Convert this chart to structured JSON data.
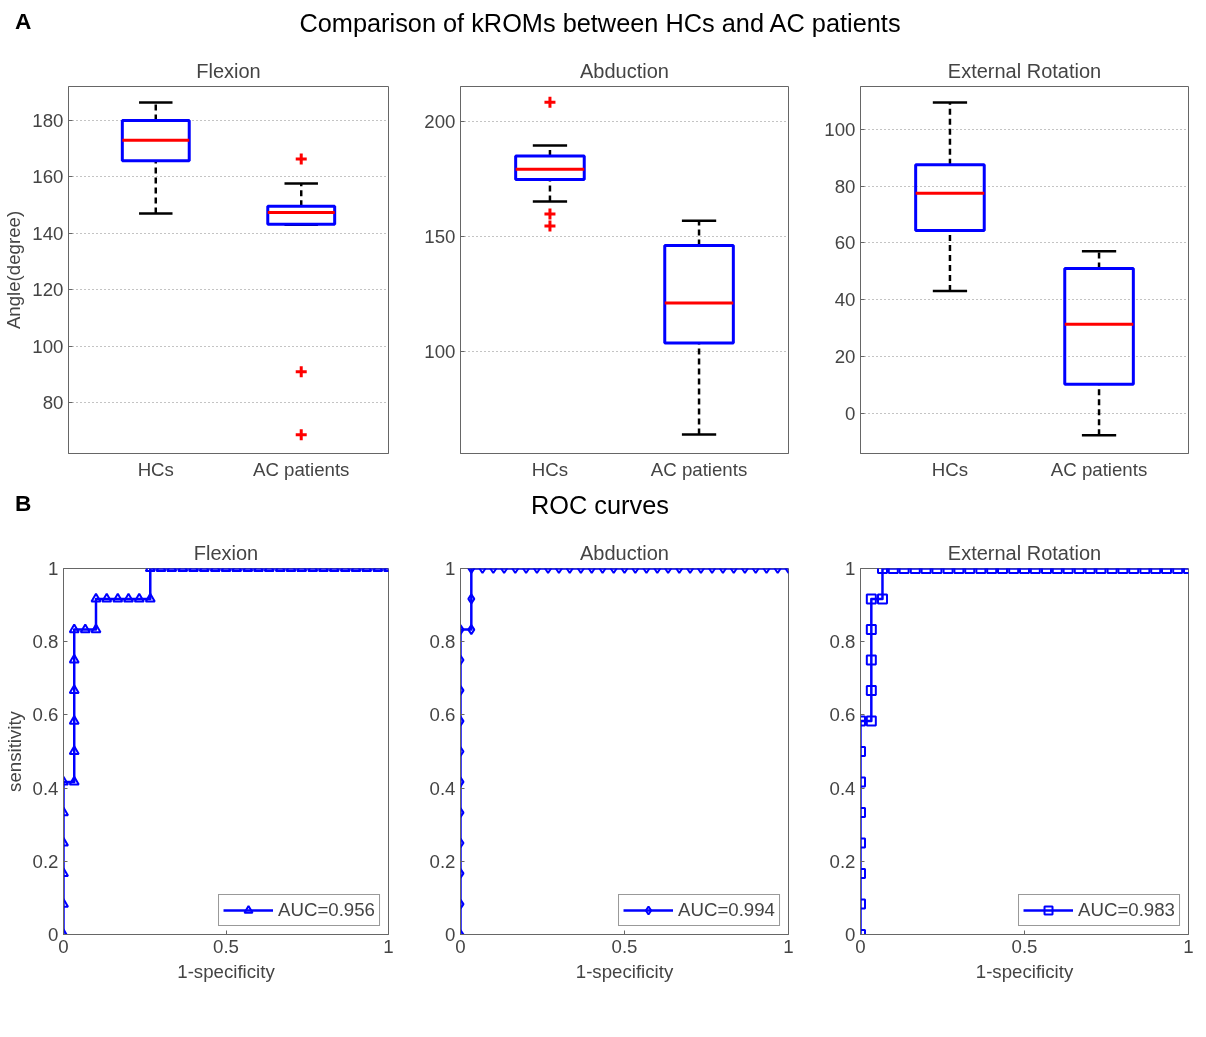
{
  "chart_data": [
    {
      "type": "box",
      "title": "Flexion",
      "ylabel": "Angle(degree)",
      "annotations": [
        "A",
        "Comparison of kROMs between HCs and AC patients"
      ],
      "categories": [
        "HCs",
        "AC patients"
      ],
      "color": "#0000ff",
      "grid": "y",
      "ylim": [
        62,
        192
      ],
      "yticks": [
        80,
        100,
        120,
        140,
        160,
        180
      ],
      "boxes": [
        {
          "low": 147,
          "q1": 165.7,
          "median": 173,
          "q3": 180,
          "high": 186.3
        },
        {
          "low": 143,
          "q1": 143.2,
          "median": 147.4,
          "q3": 149.6,
          "high": 157.6,
          "outliers": [
            166.3,
            91,
            68.6
          ]
        }
      ]
    },
    {
      "type": "box",
      "title": "Abduction",
      "categories": [
        "HCs",
        "AC patients"
      ],
      "color": "#0000ff",
      "grid": "y",
      "ylim": [
        56,
        215
      ],
      "yticks": [
        100,
        150,
        200
      ],
      "boxes": [
        {
          "low": 165.2,
          "q1": 174.7,
          "median": 179.1,
          "q3": 184.9,
          "high": 189.4,
          "outliers": [
            208.2,
            159.8,
            154.6
          ]
        },
        {
          "low": 64.2,
          "q1": 103.9,
          "median": 121.2,
          "q3": 146.1,
          "high": 156.8
        }
      ]
    },
    {
      "type": "box",
      "title": "External Rotation",
      "categories": [
        "HCs",
        "AC patients"
      ],
      "color": "#0000ff",
      "grid": "y",
      "ylim": [
        -14,
        115
      ],
      "yticks": [
        0,
        20,
        40,
        60,
        80,
        100
      ],
      "boxes": [
        {
          "low": 43.1,
          "q1": 64.4,
          "median": 77.5,
          "q3": 87.5,
          "high": 109.4
        },
        {
          "low": -7.6,
          "q1": 10.3,
          "median": 31.4,
          "q3": 51,
          "high": 57.1
        }
      ]
    },
    {
      "type": "line",
      "title": "Flexion",
      "xlabel": "1-specificity",
      "ylabel": "sensitivity",
      "annotations": [
        "B",
        "ROC curves"
      ],
      "marker": "triangle",
      "legend": "bottom right",
      "grid": false,
      "xlim": [
        0,
        1
      ],
      "ylim": [
        0,
        1
      ],
      "xticks": [
        0,
        0.5,
        1
      ],
      "yticks": [
        0,
        0.2,
        0.4,
        0.6,
        0.8,
        1
      ],
      "series": [
        {
          "name": "AUC=0.956",
          "color": "#0000ff",
          "x": [
            0,
            0,
            0,
            0,
            0,
            0,
            0.033,
            0.033,
            0.033,
            0.033,
            0.033,
            0.033,
            0.067,
            0.1,
            0.1,
            0.133,
            0.167,
            0.2,
            0.233,
            0.267,
            0.267,
            0.3,
            0.333,
            0.367,
            0.4,
            0.433,
            0.467,
            0.5,
            0.533,
            0.567,
            0.6,
            0.633,
            0.667,
            0.7,
            0.733,
            0.767,
            0.8,
            0.833,
            0.867,
            0.9,
            0.933,
            0.967,
            1
          ],
          "values": [
            0,
            0.083,
            0.167,
            0.25,
            0.333,
            0.417,
            0.417,
            0.5,
            0.583,
            0.667,
            0.75,
            0.833,
            0.833,
            0.833,
            0.917,
            0.917,
            0.917,
            0.917,
            0.917,
            0.917,
            1,
            1,
            1,
            1,
            1,
            1,
            1,
            1,
            1,
            1,
            1,
            1,
            1,
            1,
            1,
            1,
            1,
            1,
            1,
            1,
            1,
            1,
            1
          ]
        }
      ]
    },
    {
      "type": "line",
      "title": "Abduction",
      "xlabel": "1-specificity",
      "marker": "diamond",
      "legend": "bottom right",
      "grid": false,
      "xlim": [
        0,
        1
      ],
      "ylim": [
        0,
        1
      ],
      "xticks": [
        0,
        0.5,
        1
      ],
      "yticks": [
        0,
        0.2,
        0.4,
        0.6,
        0.8,
        1
      ],
      "series": [
        {
          "name": "AUC=0.994",
          "color": "#0000ff",
          "x": [
            0,
            0,
            0,
            0,
            0,
            0,
            0,
            0,
            0,
            0,
            0,
            0.033,
            0.033,
            0.033,
            0.067,
            0.1,
            0.133,
            0.167,
            0.2,
            0.233,
            0.267,
            0.3,
            0.333,
            0.367,
            0.4,
            0.433,
            0.467,
            0.5,
            0.533,
            0.567,
            0.6,
            0.633,
            0.667,
            0.7,
            0.733,
            0.767,
            0.8,
            0.833,
            0.867,
            0.9,
            0.933,
            0.967,
            1
          ],
          "values": [
            0,
            0.083,
            0.167,
            0.25,
            0.333,
            0.417,
            0.5,
            0.583,
            0.667,
            0.75,
            0.833,
            0.833,
            0.917,
            1,
            1,
            1,
            1,
            1,
            1,
            1,
            1,
            1,
            1,
            1,
            1,
            1,
            1,
            1,
            1,
            1,
            1,
            1,
            1,
            1,
            1,
            1,
            1,
            1,
            1,
            1,
            1,
            1,
            1
          ]
        }
      ]
    },
    {
      "type": "line",
      "title": "External Rotation",
      "xlabel": "1-specificity",
      "marker": "square",
      "legend": "bottom right",
      "grid": false,
      "xlim": [
        0,
        1
      ],
      "ylim": [
        0,
        1
      ],
      "xticks": [
        0,
        0.5,
        1
      ],
      "yticks": [
        0,
        0.2,
        0.4,
        0.6,
        0.8,
        1
      ],
      "series": [
        {
          "name": "AUC=0.983",
          "color": "#0000ff",
          "x": [
            0,
            0,
            0,
            0,
            0,
            0,
            0,
            0,
            0.033,
            0.033,
            0.033,
            0.033,
            0.033,
            0.067,
            0.067,
            0.1,
            0.133,
            0.167,
            0.2,
            0.233,
            0.267,
            0.3,
            0.333,
            0.367,
            0.4,
            0.433,
            0.467,
            0.5,
            0.533,
            0.567,
            0.6,
            0.633,
            0.667,
            0.7,
            0.733,
            0.767,
            0.8,
            0.833,
            0.867,
            0.9,
            0.933,
            0.967,
            1
          ],
          "values": [
            0,
            0.083,
            0.167,
            0.25,
            0.333,
            0.417,
            0.5,
            0.583,
            0.583,
            0.667,
            0.75,
            0.833,
            0.917,
            0.917,
            1,
            1,
            1,
            1,
            1,
            1,
            1,
            1,
            1,
            1,
            1,
            1,
            1,
            1,
            1,
            1,
            1,
            1,
            1,
            1,
            1,
            1,
            1,
            1,
            1,
            1,
            1,
            1,
            1
          ]
        }
      ]
    }
  ]
}
